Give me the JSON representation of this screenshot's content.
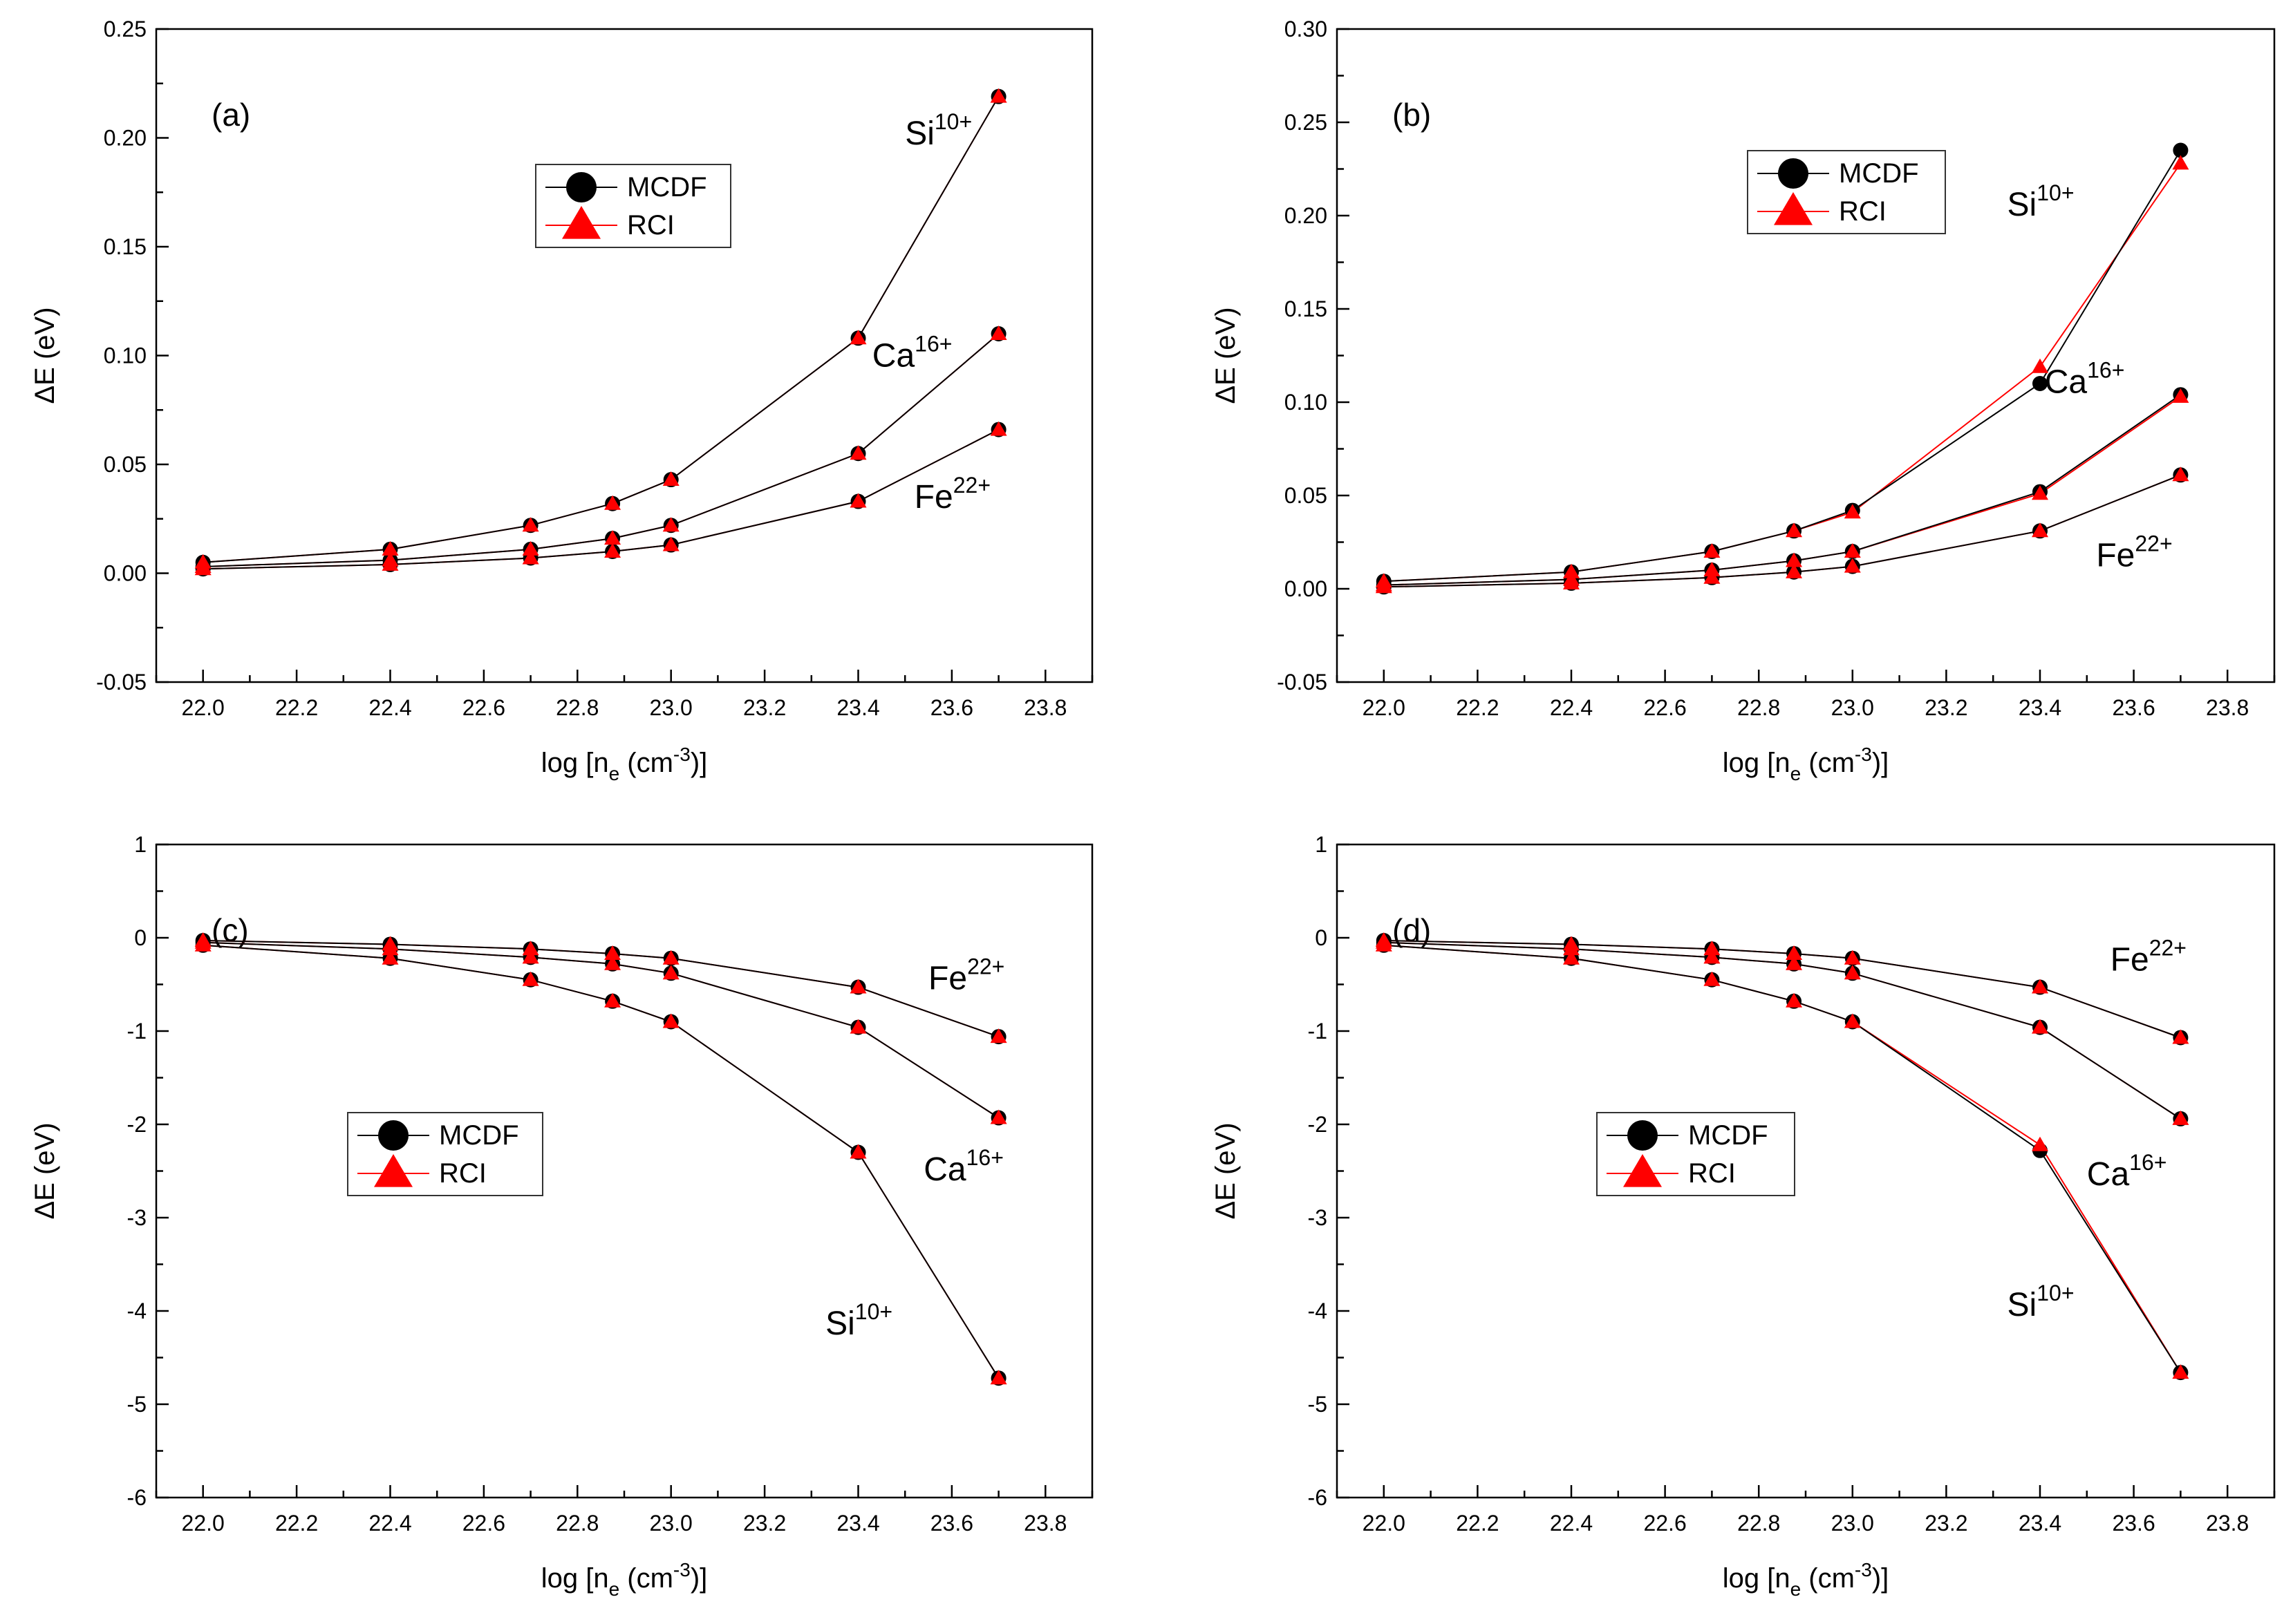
{
  "colors": {
    "mcdf": "#000000",
    "rci": "#ff0000",
    "axis": "#000000",
    "background": "#ffffff"
  },
  "chart_data": [
    {
      "type": "line",
      "panel_label": "(a)",
      "xlabel": "log [n_e (cm^-3)]",
      "ylabel": "ΔE (eV)",
      "xlim": [
        21.9,
        23.9
      ],
      "ylim": [
        -0.05,
        0.25
      ],
      "xticks": [
        "22.0",
        "22.2",
        "22.4",
        "22.6",
        "22.8",
        "23.0",
        "23.2",
        "23.4",
        "23.6",
        "23.8"
      ],
      "yticks": [
        "-0.05",
        "0.00",
        "0.05",
        "0.10",
        "0.15",
        "0.20",
        "0.25"
      ],
      "x": [
        22.0,
        22.4,
        22.7,
        22.875,
        23.0,
        23.4,
        23.7
      ],
      "legend": {
        "entries": [
          "MCDF",
          "RCI"
        ],
        "position": "upper-center-left"
      },
      "series": [
        {
          "ion": "Si",
          "charge": "10+",
          "method": "MCDF",
          "values": [
            0.005,
            0.011,
            0.022,
            0.032,
            0.043,
            0.108,
            0.219
          ]
        },
        {
          "ion": "Si",
          "charge": "10+",
          "method": "RCI",
          "values": [
            0.005,
            0.011,
            0.022,
            0.032,
            0.043,
            0.108,
            0.219
          ]
        },
        {
          "ion": "Ca",
          "charge": "16+",
          "method": "MCDF",
          "values": [
            0.003,
            0.006,
            0.011,
            0.016,
            0.022,
            0.055,
            0.11
          ]
        },
        {
          "ion": "Ca",
          "charge": "16+",
          "method": "RCI",
          "values": [
            0.003,
            0.006,
            0.011,
            0.016,
            0.022,
            0.055,
            0.11
          ]
        },
        {
          "ion": "Fe",
          "charge": "22+",
          "method": "MCDF",
          "values": [
            0.002,
            0.004,
            0.007,
            0.01,
            0.013,
            0.033,
            0.066
          ]
        },
        {
          "ion": "Fe",
          "charge": "22+",
          "method": "RCI",
          "values": [
            0.002,
            0.004,
            0.007,
            0.01,
            0.013,
            0.033,
            0.066
          ]
        }
      ],
      "annotations": [
        {
          "ion": "Si",
          "charge": "10+",
          "at": [
            23.5,
            0.197
          ]
        },
        {
          "ion": "Ca",
          "charge": "16+",
          "at": [
            23.43,
            0.095
          ]
        },
        {
          "ion": "Fe",
          "charge": "22+",
          "at": [
            23.52,
            0.03
          ]
        }
      ]
    },
    {
      "type": "line",
      "panel_label": "(b)",
      "xlabel": "log [n_e (cm^-3)]",
      "ylabel": "ΔE (eV)",
      "xlim": [
        21.9,
        23.9
      ],
      "ylim": [
        -0.05,
        0.3
      ],
      "xticks": [
        "22.0",
        "22.2",
        "22.4",
        "22.6",
        "22.8",
        "23.0",
        "23.2",
        "23.4",
        "23.6",
        "23.8"
      ],
      "yticks": [
        "-0.05",
        "0.00",
        "0.05",
        "0.10",
        "0.15",
        "0.20",
        "0.25",
        "0.30"
      ],
      "x": [
        22.0,
        22.4,
        22.7,
        22.875,
        23.0,
        23.4,
        23.7
      ],
      "legend": {
        "entries": [
          "MCDF",
          "RCI"
        ],
        "position": "upper-center-right"
      },
      "series": [
        {
          "ion": "Si",
          "charge": "10+",
          "method": "MCDF",
          "values": [
            0.004,
            0.009,
            0.02,
            0.031,
            0.042,
            0.11,
            0.235
          ]
        },
        {
          "ion": "Si",
          "charge": "10+",
          "method": "RCI",
          "values": [
            0.004,
            0.009,
            0.02,
            0.031,
            0.041,
            0.119,
            0.228
          ]
        },
        {
          "ion": "Ca",
          "charge": "16+",
          "method": "MCDF",
          "values": [
            0.002,
            0.005,
            0.01,
            0.015,
            0.02,
            0.052,
            0.104
          ]
        },
        {
          "ion": "Ca",
          "charge": "16+",
          "method": "RCI",
          "values": [
            0.002,
            0.005,
            0.01,
            0.015,
            0.02,
            0.051,
            0.103
          ]
        },
        {
          "ion": "Fe",
          "charge": "22+",
          "method": "MCDF",
          "values": [
            0.001,
            0.003,
            0.006,
            0.009,
            0.012,
            0.031,
            0.061
          ]
        },
        {
          "ion": "Fe",
          "charge": "22+",
          "method": "RCI",
          "values": [
            0.001,
            0.003,
            0.006,
            0.009,
            0.012,
            0.031,
            0.061
          ]
        }
      ],
      "annotations": [
        {
          "ion": "Si",
          "charge": "10+",
          "at": [
            23.33,
            0.2
          ]
        },
        {
          "ion": "Ca",
          "charge": "16+",
          "at": [
            23.41,
            0.105
          ]
        },
        {
          "ion": "Fe",
          "charge": "22+",
          "at": [
            23.52,
            0.012
          ]
        }
      ]
    },
    {
      "type": "line",
      "panel_label": "(c)",
      "xlabel": "log [n_e (cm^-3)]",
      "ylabel": "ΔE (eV)",
      "xlim": [
        21.9,
        23.9
      ],
      "ylim": [
        -6,
        1
      ],
      "xticks": [
        "22.0",
        "22.2",
        "22.4",
        "22.6",
        "22.8",
        "23.0",
        "23.2",
        "23.4",
        "23.6",
        "23.8"
      ],
      "yticks": [
        "-6",
        "-5",
        "-4",
        "-3",
        "-2",
        "-1",
        "0",
        "1"
      ],
      "x": [
        22.0,
        22.4,
        22.7,
        22.875,
        23.0,
        23.4,
        23.7
      ],
      "legend": {
        "entries": [
          "MCDF",
          "RCI"
        ],
        "position": "lower-left"
      },
      "series": [
        {
          "ion": "Si",
          "charge": "10+",
          "method": "MCDF",
          "values": [
            -0.08,
            -0.22,
            -0.45,
            -0.68,
            -0.9,
            -2.3,
            -4.72
          ]
        },
        {
          "ion": "Si",
          "charge": "10+",
          "method": "RCI",
          "values": [
            -0.08,
            -0.22,
            -0.45,
            -0.68,
            -0.9,
            -2.3,
            -4.72
          ]
        },
        {
          "ion": "Ca",
          "charge": "16+",
          "method": "MCDF",
          "values": [
            -0.05,
            -0.12,
            -0.21,
            -0.28,
            -0.38,
            -0.96,
            -1.93
          ]
        },
        {
          "ion": "Ca",
          "charge": "16+",
          "method": "RCI",
          "values": [
            -0.05,
            -0.12,
            -0.21,
            -0.28,
            -0.38,
            -0.96,
            -1.93
          ]
        },
        {
          "ion": "Fe",
          "charge": "22+",
          "method": "MCDF",
          "values": [
            -0.03,
            -0.07,
            -0.12,
            -0.17,
            -0.22,
            -0.53,
            -1.06
          ]
        },
        {
          "ion": "Fe",
          "charge": "22+",
          "method": "RCI",
          "values": [
            -0.03,
            -0.07,
            -0.12,
            -0.17,
            -0.22,
            -0.53,
            -1.06
          ]
        }
      ],
      "annotations": [
        {
          "ion": "Fe",
          "charge": "22+",
          "at": [
            23.55,
            -0.55
          ]
        },
        {
          "ion": "Ca",
          "charge": "16+",
          "at": [
            23.54,
            -2.6
          ]
        },
        {
          "ion": "Si",
          "charge": "10+",
          "at": [
            23.33,
            -4.25
          ]
        }
      ]
    },
    {
      "type": "line",
      "panel_label": "(d)",
      "xlabel": "log [n_e (cm^-3)]",
      "ylabel": "ΔE (eV)",
      "xlim": [
        21.9,
        23.9
      ],
      "ylim": [
        -6,
        1
      ],
      "xticks": [
        "22.0",
        "22.2",
        "22.4",
        "22.6",
        "22.8",
        "23.0",
        "23.2",
        "23.4",
        "23.6",
        "23.8"
      ],
      "yticks": [
        "-6",
        "-5",
        "-4",
        "-3",
        "-2",
        "-1",
        "0",
        "1"
      ],
      "x": [
        22.0,
        22.4,
        22.7,
        22.875,
        23.0,
        23.4,
        23.7
      ],
      "legend": {
        "entries": [
          "MCDF",
          "RCI"
        ],
        "position": "lower-center-left"
      },
      "series": [
        {
          "ion": "Si",
          "charge": "10+",
          "method": "MCDF",
          "values": [
            -0.08,
            -0.22,
            -0.45,
            -0.68,
            -0.9,
            -2.28,
            -4.66
          ]
        },
        {
          "ion": "Si",
          "charge": "10+",
          "method": "RCI",
          "values": [
            -0.08,
            -0.22,
            -0.45,
            -0.68,
            -0.9,
            -2.22,
            -4.66
          ]
        },
        {
          "ion": "Ca",
          "charge": "16+",
          "method": "MCDF",
          "values": [
            -0.05,
            -0.12,
            -0.21,
            -0.28,
            -0.38,
            -0.96,
            -1.94
          ]
        },
        {
          "ion": "Ca",
          "charge": "16+",
          "method": "RCI",
          "values": [
            -0.05,
            -0.12,
            -0.21,
            -0.28,
            -0.38,
            -0.96,
            -1.94
          ]
        },
        {
          "ion": "Fe",
          "charge": "22+",
          "method": "MCDF",
          "values": [
            -0.03,
            -0.07,
            -0.12,
            -0.17,
            -0.22,
            -0.53,
            -1.07
          ]
        },
        {
          "ion": "Fe",
          "charge": "22+",
          "method": "RCI",
          "values": [
            -0.03,
            -0.07,
            -0.12,
            -0.17,
            -0.22,
            -0.53,
            -1.07
          ]
        }
      ],
      "annotations": [
        {
          "ion": "Fe",
          "charge": "22+",
          "at": [
            23.55,
            -0.35
          ]
        },
        {
          "ion": "Ca",
          "charge": "16+",
          "at": [
            23.5,
            -2.65
          ]
        },
        {
          "ion": "Si",
          "charge": "10+",
          "at": [
            23.33,
            -4.05
          ]
        }
      ]
    }
  ]
}
